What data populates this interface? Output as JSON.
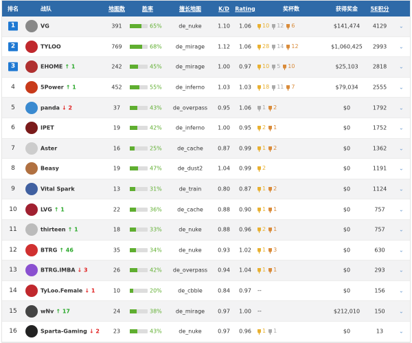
{
  "header": {
    "rank": "排名",
    "team": "战队",
    "maps": "地图数",
    "winrate": "胜率",
    "best_map": "擅长地图",
    "kd": "K/D",
    "rating": "Rating",
    "trophies": "奖杯数",
    "prize": "获得奖金",
    "score": "5E积分"
  },
  "colors": {
    "header_bg": "#2e6aa8",
    "rank_badge": "#1e78d2",
    "win_bar": "#5fae30",
    "up": "#2aa82a",
    "down": "#e02020",
    "gold": "#e8b030",
    "silver": "#aaaaaa",
    "bronze": "#d98b3a"
  },
  "rows": [
    {
      "rank": "1",
      "team": "VG",
      "change": "",
      "dir": "",
      "maps": "391",
      "winrate": 65,
      "winrate_label": "65%",
      "map": "de_nuke",
      "kd": "1.10",
      "rating": "1.06",
      "trophies": {
        "gold": "10",
        "silver": "12",
        "bronze": "6"
      },
      "prize": "$141,474",
      "score": "4129",
      "logo": "#888"
    },
    {
      "rank": "2",
      "team": "TYLOO",
      "change": "",
      "dir": "",
      "maps": "769",
      "winrate": 68,
      "winrate_label": "68%",
      "map": "de_mirage",
      "kd": "1.12",
      "rating": "1.06",
      "trophies": {
        "gold": "28",
        "silver": "14",
        "bronze": "12"
      },
      "prize": "$1,060,425",
      "score": "2993",
      "logo": "#c0282d"
    },
    {
      "rank": "3",
      "team": "EHOME",
      "change": "1",
      "dir": "up",
      "maps": "242",
      "winrate": 45,
      "winrate_label": "45%",
      "map": "de_mirage",
      "kd": "1.00",
      "rating": "0.97",
      "trophies": {
        "gold": "10",
        "silver": "5",
        "bronze": "10"
      },
      "prize": "$25,103",
      "score": "2818",
      "logo": "#b03030"
    },
    {
      "rank": "4",
      "team": "5Power",
      "change": "1",
      "dir": "up",
      "maps": "452",
      "winrate": 55,
      "winrate_label": "55%",
      "map": "de_inferno",
      "kd": "1.03",
      "rating": "1.03",
      "trophies": {
        "gold": "18",
        "silver": "11",
        "bronze": "7"
      },
      "prize": "$79,034",
      "score": "2555",
      "logo": "#c83a1a"
    },
    {
      "rank": "5",
      "team": "panda",
      "change": "2",
      "dir": "down",
      "maps": "37",
      "winrate": 43,
      "winrate_label": "43%",
      "map": "de_overpass",
      "kd": "0.95",
      "rating": "1.06",
      "trophies": {
        "silver": "1",
        "bronze": "2"
      },
      "prize": "$0",
      "score": "1792",
      "logo": "#3a8ad0"
    },
    {
      "rank": "6",
      "team": "IPET",
      "change": "",
      "dir": "",
      "maps": "19",
      "winrate": 42,
      "winrate_label": "42%",
      "map": "de_inferno",
      "kd": "1.00",
      "rating": "0.95",
      "trophies": {
        "gold": "2",
        "bronze": "1"
      },
      "prize": "$0",
      "score": "1752",
      "logo": "#7a1a1a"
    },
    {
      "rank": "7",
      "team": "Aster",
      "change": "",
      "dir": "",
      "maps": "16",
      "winrate": 25,
      "winrate_label": "25%",
      "map": "de_cache",
      "kd": "0.87",
      "rating": "0.99",
      "trophies": {
        "gold": "1",
        "bronze": "2"
      },
      "prize": "$0",
      "score": "1362",
      "logo": "#ccc"
    },
    {
      "rank": "8",
      "team": "Beasy",
      "change": "",
      "dir": "",
      "maps": "19",
      "winrate": 47,
      "winrate_label": "47%",
      "map": "de_dust2",
      "kd": "1.04",
      "rating": "0.99",
      "trophies": {
        "gold": "2"
      },
      "prize": "$0",
      "score": "1191",
      "logo": "#b07040"
    },
    {
      "rank": "9",
      "team": "Vital Spark",
      "change": "",
      "dir": "",
      "maps": "13",
      "winrate": 31,
      "winrate_label": "31%",
      "map": "de_train",
      "kd": "0.80",
      "rating": "0.87",
      "trophies": {
        "gold": "1",
        "bronze": "2"
      },
      "prize": "$0",
      "score": "1124",
      "logo": "#4060a0"
    },
    {
      "rank": "10",
      "team": "LVG",
      "change": "1",
      "dir": "up",
      "maps": "22",
      "winrate": 36,
      "winrate_label": "36%",
      "map": "de_cache",
      "kd": "0.88",
      "rating": "0.90",
      "trophies": {
        "gold": "1",
        "bronze": "1"
      },
      "prize": "$0",
      "score": "757",
      "logo": "#a02030"
    },
    {
      "rank": "11",
      "team": "thirteen",
      "change": "1",
      "dir": "up",
      "maps": "18",
      "winrate": 33,
      "winrate_label": "33%",
      "map": "de_nuke",
      "kd": "0.88",
      "rating": "0.96",
      "trophies": {
        "gold": "2",
        "bronze": "1"
      },
      "prize": "$0",
      "score": "757",
      "logo": "#bbb"
    },
    {
      "rank": "12",
      "team": "BTRG",
      "change": "46",
      "dir": "up",
      "maps": "35",
      "winrate": 34,
      "winrate_label": "34%",
      "map": "de_nuke",
      "kd": "0.93",
      "rating": "1.02",
      "trophies": {
        "gold": "1",
        "bronze": "3"
      },
      "prize": "$0",
      "score": "630",
      "logo": "#d03030"
    },
    {
      "rank": "13",
      "team": "BTRG.IMBA",
      "change": "3",
      "dir": "down",
      "maps": "26",
      "winrate": 42,
      "winrate_label": "42%",
      "map": "de_overpass",
      "kd": "0.94",
      "rating": "1.04",
      "trophies": {
        "gold": "1",
        "bronze": "1"
      },
      "prize": "$0",
      "score": "293",
      "logo": "#8a50d0"
    },
    {
      "rank": "14",
      "team": "TyLoo.Female",
      "change": "1",
      "dir": "down",
      "maps": "10",
      "winrate": 20,
      "winrate_label": "20%",
      "map": "de_cbble",
      "kd": "0.84",
      "rating": "0.97",
      "trophies_empty": "--",
      "prize": "$0",
      "score": "156",
      "logo": "#c0282d"
    },
    {
      "rank": "15",
      "team": "wNv",
      "change": "17",
      "dir": "up",
      "maps": "24",
      "winrate": 38,
      "winrate_label": "38%",
      "map": "de_mirage",
      "kd": "0.97",
      "rating": "1.00",
      "trophies_empty": "--",
      "prize": "$212,010",
      "score": "150",
      "logo": "#444"
    },
    {
      "rank": "16",
      "team": "Sparta-Gaming",
      "change": "2",
      "dir": "down",
      "maps": "23",
      "winrate": 43,
      "winrate_label": "43%",
      "map": "de_nuke",
      "kd": "0.97",
      "rating": "0.96",
      "trophies": {
        "gold": "1",
        "silver": "1"
      },
      "prize": "$0",
      "score": "13",
      "logo": "#222"
    }
  ]
}
